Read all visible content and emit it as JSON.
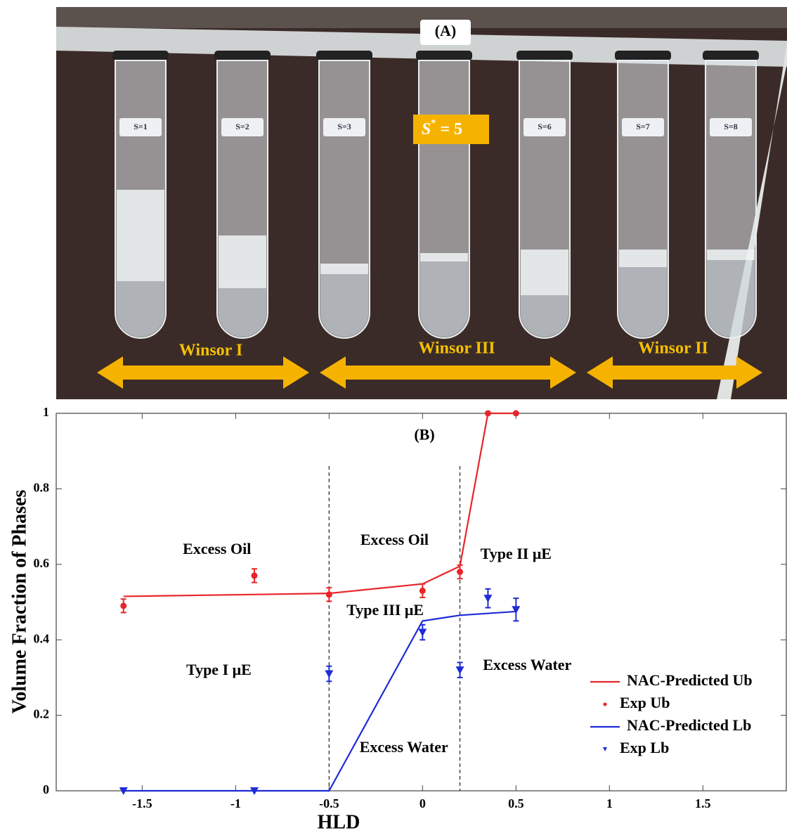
{
  "panel_a": {
    "label": "(A)",
    "s_star": {
      "symbol": "S",
      "superscript": "*",
      "rest": "= 5"
    },
    "tube_labels": [
      "S=1",
      "S=2",
      "S=3",
      "S=6",
      "S=7",
      "S=8"
    ],
    "regions": [
      "Winsor I",
      "Winsor III",
      "Winsor II"
    ]
  },
  "chart_data": {
    "type": "line",
    "xlabel": "HLD",
    "ylabel": "Volume Fraction of Phases",
    "xlim": [
      -1.96,
      1.95
    ],
    "ylim": [
      0,
      1
    ],
    "xticks": [
      -1.5,
      -1,
      -0.5,
      0,
      0.5,
      1,
      1.5
    ],
    "yticks": [
      0,
      0.2,
      0.4,
      0.6,
      0.8,
      1
    ],
    "vlines": [
      -0.5,
      0.2
    ],
    "legend": "lower right",
    "series": [
      {
        "name": "NAC-Predicted Ub",
        "color": "#e8252a",
        "marker": "none",
        "x": [
          -1.6,
          -0.5,
          0,
          0.2,
          0.35,
          0.5
        ],
        "values": [
          0.515,
          0.523,
          0.548,
          0.595,
          1,
          1
        ]
      },
      {
        "name": "Exp Ub",
        "color": "#e8252a",
        "marker": "circle",
        "x": [
          -1.6,
          -0.9,
          -0.5,
          0,
          0.2,
          0.35,
          0.5
        ],
        "values": [
          0.49,
          0.57,
          0.52,
          0.53,
          0.58,
          1,
          1
        ],
        "errors": [
          0.018,
          0.018,
          0.018,
          0.018,
          0.018,
          null,
          null
        ]
      },
      {
        "name": "NAC-Predicted Lb",
        "color": "#1f2bd6",
        "marker": "none",
        "x": [
          -1.6,
          -0.5,
          0,
          0.2,
          0.5
        ],
        "values": [
          0,
          0,
          0.45,
          0.465,
          0.475
        ]
      },
      {
        "name": "Exp Lb",
        "color": "#1f2bd6",
        "marker": "triangle",
        "x": [
          -1.6,
          -0.9,
          -0.5,
          0,
          0.2,
          0.35,
          0.5
        ],
        "values": [
          0,
          0,
          0.31,
          0.42,
          0.32,
          0.51,
          0.48
        ],
        "errors": [
          null,
          null,
          0.02,
          0.02,
          0.02,
          0.025,
          0.03
        ]
      }
    ],
    "annotations": [
      {
        "text": "(B)",
        "x": 0.01,
        "y": 0.94
      },
      {
        "text": "Excess Oil",
        "x": -1.1,
        "y": 0.637
      },
      {
        "text": "Excess Oil",
        "x": -0.15,
        "y": 0.661
      },
      {
        "text": "Type II μE",
        "x": 0.5,
        "y": 0.624
      },
      {
        "text": "Type III μE",
        "x": -0.2,
        "y": 0.475
      },
      {
        "text": "Type I μE",
        "x": -1.09,
        "y": 0.317
      },
      {
        "text": "Excess Water",
        "x": 0.56,
        "y": 0.33
      },
      {
        "text": "Excess Water",
        "x": -0.1,
        "y": 0.112
      }
    ]
  }
}
